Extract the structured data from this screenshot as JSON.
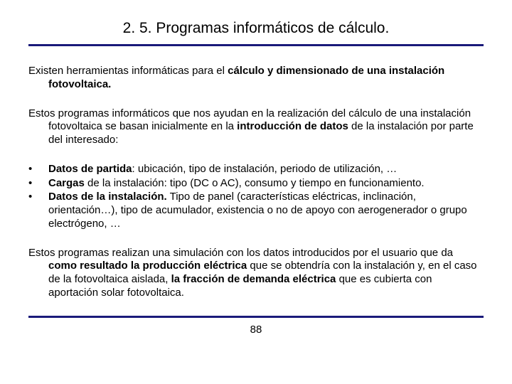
{
  "title": "2. 5. Programas informáticos de cálculo.",
  "colors": {
    "rule": "#1a1a7a",
    "text": "#000000",
    "background": "#ffffff"
  },
  "typography": {
    "title_fontsize": 21,
    "body_fontsize": 15,
    "font_family": "Arial"
  },
  "para1": {
    "pre": "Existen herramientas informáticas para el ",
    "bold": "cálculo y dimensionado de una instalación fotovoltaica."
  },
  "para2": {
    "pre": "Estos programas informáticos que nos ayudan en la realización del cálculo de una instalación fotovoltaica se basan inicialmente en la ",
    "bold": "introducción de datos",
    "post": " de la instalación por parte del interesado:"
  },
  "bullets": [
    {
      "mark": "•",
      "b1": "Datos de partida",
      "t1": ": ubicación, tipo de instalación, periodo de utilización, …"
    },
    {
      "mark": "•",
      "b1": "Cargas",
      "t1": " de la instalación: tipo (DC o AC), consumo y tiempo en funcionamiento."
    },
    {
      "mark": "•",
      "b1": "Datos de la instalación.",
      "t1": " Tipo de panel (características eléctricas, inclinación, orientación…), tipo de acumulador, existencia o no de apoyo con aerogenerador o grupo electrógeno, …"
    }
  ],
  "para3": {
    "pre": "Estos programas realizan una simulación con los datos introducidos por el usuario que da ",
    "b1": "como resultado la producción eléctrica",
    "mid": " que se obtendría con la instalación y, en el caso de la fotovoltaica aislada, ",
    "b2": "la fracción de demanda eléctrica",
    "post": " que es cubierta con aportación solar fotovoltaica."
  },
  "page_number": "88"
}
